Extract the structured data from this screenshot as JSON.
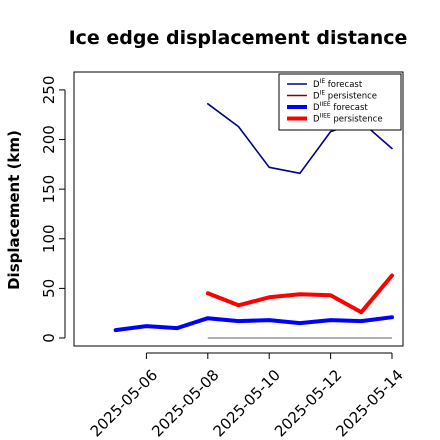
{
  "chart_data": {
    "type": "line",
    "title": "Ice edge displacement distance",
    "xlabel": "",
    "ylabel": "Displacement (km)",
    "ylim": [
      0,
      260
    ],
    "y_ticks": [
      0,
      50,
      100,
      150,
      200,
      250
    ],
    "x_ticks": [
      {
        "label": "2025-05-06",
        "color": "#2e8b22"
      },
      {
        "label": "2025-05-08",
        "color": "#000000"
      },
      {
        "label": "2025-05-10",
        "color": "#000000"
      },
      {
        "label": "2025-05-12",
        "color": "#000000"
      },
      {
        "label": "2025-05-14",
        "color": "#000000"
      }
    ],
    "x": [
      "2025-05-05",
      "2025-05-06",
      "2025-05-07",
      "2025-05-08",
      "2025-05-09",
      "2025-05-10",
      "2025-05-11",
      "2025-05-12",
      "2025-05-13",
      "2025-05-14"
    ],
    "xlim": [
      "2025-05-04",
      "2025-05-14"
    ],
    "legend_position": "top-right",
    "grid": false,
    "series": [
      {
        "name_base": "D",
        "name_sup": "IE",
        "name_rest": "forecast",
        "color": "#00008b",
        "width": "thin",
        "values": [
          null,
          null,
          null,
          236,
          213,
          172,
          166,
          208,
          218,
          191
        ]
      },
      {
        "name_base": "D",
        "name_sup": "IE",
        "name_rest": "persistence",
        "color": "#8b0000",
        "width": "thin",
        "values": [
          null,
          null,
          null,
          null,
          null,
          null,
          null,
          null,
          null,
          null
        ]
      },
      {
        "name_base": "D",
        "name_sup": "IIEE",
        "name_rest": "forecast",
        "color": "#0000ff",
        "width": "thick",
        "values": [
          8,
          12,
          10,
          20,
          17,
          18,
          15,
          18,
          17,
          21
        ]
      },
      {
        "name_base": "D",
        "name_sup": "IIEE",
        "name_rest": "persistence",
        "color": "#ff0000",
        "width": "thick",
        "values": [
          null,
          null,
          null,
          45,
          33,
          41,
          44,
          43,
          26,
          63
        ]
      }
    ],
    "reference_line": {
      "value": 0,
      "from": "2025-05-08",
      "to": "2025-05-14",
      "color": "#808080"
    }
  }
}
